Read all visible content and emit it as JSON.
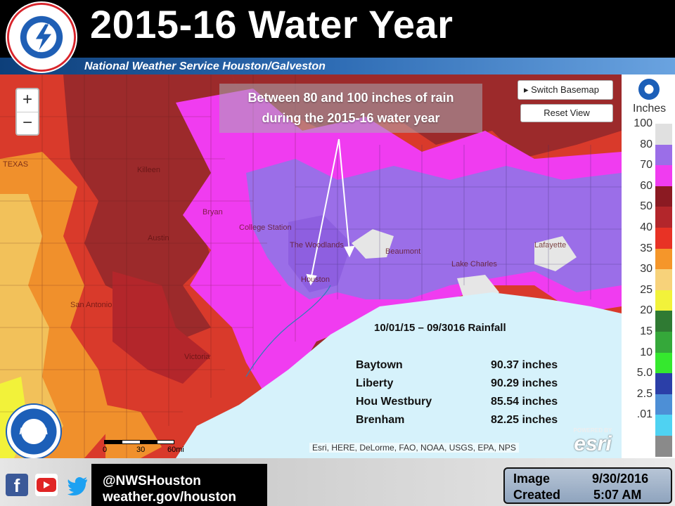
{
  "header": {
    "title": "2015-16 Water Year",
    "subtitle": "National Weather Service Houston/Galveston",
    "logo_ring_text": "NATIONAL WEATHER SERVICE"
  },
  "map": {
    "zoom_in_label": "+",
    "zoom_out_label": "−",
    "callout_line1": "Between 80 and 100 inches of  rain",
    "callout_line2": "during the 2015-16  water year",
    "switch_basemap_label": "▸ Switch Basemap",
    "reset_view_label": "Reset View",
    "rainfall_title": "10/01/15 – 09/3016  Rainfall",
    "rainfall_rows": [
      {
        "site": "Baytown",
        "amount": "90.37 inches"
      },
      {
        "site": "Liberty",
        "amount": "90.29 inches"
      },
      {
        "site": "Hou Westbury",
        "amount": "85.54 inches"
      },
      {
        "site": "Brenham",
        "amount": "82.25 inches"
      }
    ],
    "place_labels": [
      "TEXAS",
      "Killeen",
      "Austin",
      "San Antonio",
      "Bryan",
      "College Station",
      "The Woodlands",
      "Houston",
      "Victoria",
      "Beaumont",
      "Lake Charles",
      "Lafayette"
    ],
    "scale_labels": [
      "0",
      "30",
      "60mi"
    ],
    "attribution": "Esri, HERE, DeLorme, FAO, NOAA, USGS, EPA, NPS",
    "esri_powered": "POWERED BY",
    "esri_logo": "esri",
    "help_label": "?",
    "noaa_logo_text": "NOAA"
  },
  "legend": {
    "units": "Inches",
    "items": [
      {
        "label": "100",
        "color": "#e0e0e0"
      },
      {
        "label": "80",
        "color": "#9b6ee8"
      },
      {
        "label": "70",
        "color": "#f03cf0"
      },
      {
        "label": "60",
        "color": "#8b1a22"
      },
      {
        "label": "50",
        "color": "#b3262b"
      },
      {
        "label": "40",
        "color": "#e83225"
      },
      {
        "label": "35",
        "color": "#f5962a"
      },
      {
        "label": "30",
        "color": "#f7d27a"
      },
      {
        "label": "25",
        "color": "#f2f23a"
      },
      {
        "label": "20",
        "color": "#2f7a33"
      },
      {
        "label": "15",
        "color": "#35a83a"
      },
      {
        "label": "10",
        "color": "#35e82e"
      },
      {
        "label": "5.0",
        "color": "#2b3fa8"
      },
      {
        "label": "2.5",
        "color": "#4d8fd6"
      },
      {
        "label": ".01",
        "color": "#4fd2f2"
      },
      {
        "label": "",
        "color": "#8a8a8a"
      }
    ]
  },
  "footer": {
    "handle": "@NWSHouston",
    "url": "weather.gov/houston",
    "image_created_label_1": "Image",
    "image_created_label_2": "Created",
    "date": "9/30/2016",
    "time": "5:07 AM"
  },
  "colors": {
    "dark_red": "#9c2a2b",
    "red": "#d93a2b",
    "magenta": "#f03cf0",
    "purple": "#9b6ee8",
    "water": "#d6f2fb"
  }
}
